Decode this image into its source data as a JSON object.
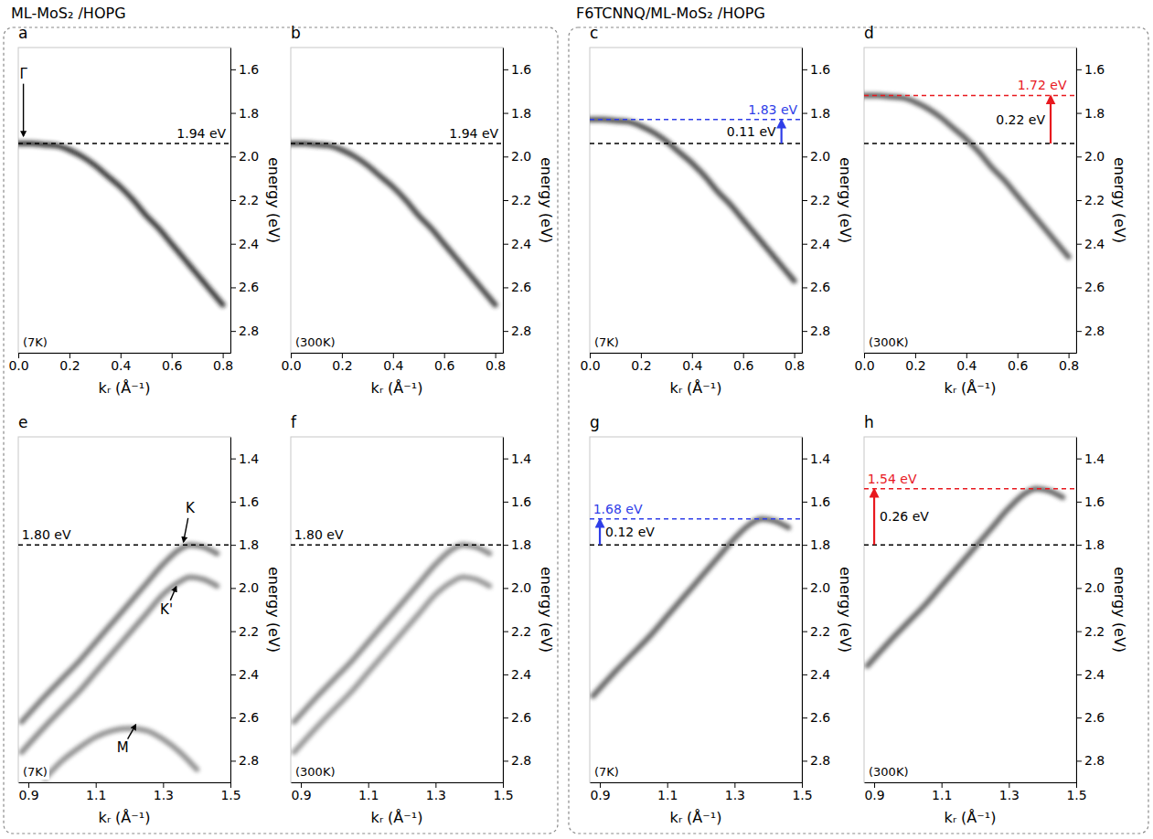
{
  "group_titles": [
    "ML-MoS₂ /HOPG",
    "F6TCNNQ/ML-MoS₂ /HOPG"
  ],
  "chart_data": [
    {
      "type": "line",
      "title": "a",
      "note": "(7K)",
      "x_label": "kᵣ (Å⁻¹)",
      "y_label": "energy (eV)",
      "xlim": [
        0,
        0.83
      ],
      "xticks": [
        {
          "value": 0,
          "label": "0.0"
        },
        0.2,
        0.4,
        0.6,
        0.8
      ],
      "ylim": [
        2.9,
        1.5
      ],
      "yticks": [
        1.6,
        1.8,
        {
          "value": 2,
          "label": "2.0"
        },
        2.2,
        2.4,
        2.6,
        2.8
      ],
      "series": [
        {
          "color": "#1a1a1a",
          "x": [
            0,
            0.05,
            0.1,
            0.15,
            0.2,
            0.25,
            0.3,
            0.35,
            0.4,
            0.45,
            0.5,
            0.55,
            0.6,
            0.65,
            0.7,
            0.75,
            0.8
          ],
          "values": [
            1.94,
            1.94,
            1.945,
            1.95,
            1.97,
            2.0,
            2.04,
            2.09,
            2.14,
            2.2,
            2.27,
            2.33,
            2.4,
            2.47,
            2.54,
            2.61,
            2.68
          ]
        }
      ],
      "reference_lines": [
        {
          "value": 1.94,
          "label": "1.94 eV",
          "x": 0.62,
          "color": "#000000"
        }
      ],
      "annotations": [
        {
          "text": "Γ",
          "xy": [
            0.02,
            1.91
          ],
          "xytext": [
            0.02,
            1.62
          ]
        }
      ]
    },
    {
      "type": "line",
      "title": "b",
      "note": "(300K)",
      "x_label": "kᵣ (Å⁻¹)",
      "y_label": "energy (eV)",
      "xlim": [
        0,
        0.83
      ],
      "xticks": [
        {
          "value": 0,
          "label": "0.0"
        },
        0.2,
        0.4,
        0.6,
        0.8
      ],
      "ylim": [
        2.9,
        1.5
      ],
      "yticks": [
        1.6,
        1.8,
        {
          "value": 2,
          "label": "2.0"
        },
        2.2,
        2.4,
        2.6,
        2.8
      ],
      "series": [
        {
          "color": "#2a2a2a",
          "x": [
            0,
            0.05,
            0.1,
            0.15,
            0.2,
            0.25,
            0.3,
            0.35,
            0.4,
            0.45,
            0.5,
            0.55,
            0.6,
            0.65,
            0.7,
            0.75,
            0.8
          ],
          "values": [
            1.94,
            1.94,
            1.945,
            1.95,
            1.97,
            2.0,
            2.04,
            2.09,
            2.14,
            2.2,
            2.27,
            2.33,
            2.4,
            2.47,
            2.54,
            2.61,
            2.68
          ]
        }
      ],
      "reference_lines": [
        {
          "value": 1.94,
          "label": "1.94 eV",
          "x": 0.62,
          "color": "#000000"
        }
      ]
    },
    {
      "type": "line",
      "title": "c",
      "note": "(7K)",
      "x_label": "kᵣ (Å⁻¹)",
      "y_label": "energy (eV)",
      "xlim": [
        0,
        0.83
      ],
      "xticks": [
        {
          "value": 0,
          "label": "0.0"
        },
        0.2,
        0.4,
        0.6,
        0.8
      ],
      "ylim": [
        2.9,
        1.5
      ],
      "yticks": [
        1.6,
        1.8,
        {
          "value": 2,
          "label": "2.0"
        },
        2.2,
        2.4,
        2.6,
        2.8
      ],
      "series": [
        {
          "color": "#333333",
          "x": [
            0,
            0.05,
            0.1,
            0.15,
            0.2,
            0.25,
            0.3,
            0.35,
            0.4,
            0.45,
            0.5,
            0.55,
            0.6,
            0.65,
            0.7,
            0.75,
            0.8
          ],
          "values": [
            1.83,
            1.83,
            1.835,
            1.84,
            1.86,
            1.89,
            1.93,
            1.98,
            2.03,
            2.09,
            2.16,
            2.22,
            2.29,
            2.36,
            2.43,
            2.5,
            2.57
          ]
        }
      ],
      "reference_lines": [
        {
          "value": 1.83,
          "label": "1.83 eV",
          "x": 0.62,
          "color": "#2f3ee8"
        },
        {
          "value": 1.94,
          "color": "#000000"
        }
      ],
      "shift": {
        "from": 1.94,
        "to": 1.83,
        "x": 0.75,
        "label": "0.11 eV",
        "color": "#2f3ee8"
      }
    },
    {
      "type": "line",
      "title": "d",
      "note": "(300K)",
      "x_label": "kᵣ (Å⁻¹)",
      "y_label": "energy (eV)",
      "xlim": [
        0,
        0.83
      ],
      "xticks": [
        {
          "value": 0,
          "label": "0.0"
        },
        0.2,
        0.4,
        0.6,
        0.8
      ],
      "ylim": [
        2.9,
        1.5
      ],
      "yticks": [
        1.6,
        1.8,
        {
          "value": 2,
          "label": "2.0"
        },
        2.2,
        2.4,
        2.6,
        2.8
      ],
      "series": [
        {
          "color": "#444444",
          "x": [
            0,
            0.05,
            0.1,
            0.15,
            0.2,
            0.25,
            0.3,
            0.35,
            0.4,
            0.45,
            0.5,
            0.55,
            0.6,
            0.65,
            0.7,
            0.75,
            0.8
          ],
          "values": [
            1.72,
            1.72,
            1.725,
            1.73,
            1.75,
            1.78,
            1.82,
            1.87,
            1.92,
            1.98,
            2.05,
            2.11,
            2.18,
            2.25,
            2.32,
            2.39,
            2.46
          ]
        }
      ],
      "reference_lines": [
        {
          "value": 1.72,
          "label": "1.72 eV",
          "x": 0.6,
          "color": "#e8191f"
        },
        {
          "value": 1.94,
          "color": "#000000"
        }
      ],
      "shift": {
        "from": 1.94,
        "to": 1.72,
        "x": 0.73,
        "label": "0.22 eV",
        "color": "#e8191f"
      }
    },
    {
      "type": "line",
      "title": "e",
      "note": "(7K)",
      "x_label": "kᵣ (Å⁻¹)",
      "y_label": "energy (eV)",
      "xlim": [
        0.87,
        1.5
      ],
      "xticks": [
        0.9,
        1.1,
        1.3,
        1.5
      ],
      "ylim": [
        2.9,
        1.3
      ],
      "yticks": [
        1.4,
        1.6,
        1.8,
        {
          "value": 2,
          "label": "2.0"
        },
        2.2,
        2.4,
        2.6,
        2.8
      ],
      "series": [
        {
          "color": "#666666",
          "x": [
            0.88,
            0.95,
            1.0,
            1.05,
            1.1,
            1.15,
            1.2,
            1.25,
            1.3,
            1.35,
            1.38,
            1.42,
            1.46
          ],
          "values": [
            2.62,
            2.5,
            2.42,
            2.34,
            2.25,
            2.16,
            2.07,
            1.98,
            1.89,
            1.82,
            1.8,
            1.81,
            1.84
          ]
        },
        {
          "color": "#777777",
          "x": [
            0.88,
            0.95,
            1.0,
            1.05,
            1.1,
            1.15,
            1.2,
            1.25,
            1.3,
            1.35,
            1.38,
            1.42,
            1.46
          ],
          "values": [
            2.76,
            2.64,
            2.56,
            2.48,
            2.39,
            2.3,
            2.21,
            2.12,
            2.03,
            1.97,
            1.95,
            1.96,
            1.99
          ]
        },
        {
          "color": "#808080",
          "x": [
            0.95,
            1.0,
            1.05,
            1.1,
            1.15,
            1.2,
            1.25,
            1.3,
            1.35,
            1.4
          ],
          "values": [
            2.88,
            2.8,
            2.74,
            2.69,
            2.66,
            2.65,
            2.66,
            2.7,
            2.76,
            2.84
          ]
        }
      ],
      "reference_lines": [
        {
          "value": 1.8,
          "label": "1.80 eV",
          "x": 0.88,
          "color": "#000000"
        }
      ],
      "annotations": [
        {
          "text": "K",
          "xy": [
            1.36,
            1.79
          ],
          "xytext": [
            1.38,
            1.63
          ]
        },
        {
          "text": "K'",
          "xy": [
            1.34,
            1.99
          ],
          "xytext": [
            1.31,
            2.1
          ]
        },
        {
          "text": "M",
          "xy": [
            1.22,
            2.63
          ],
          "xytext": [
            1.18,
            2.74
          ]
        }
      ]
    },
    {
      "type": "line",
      "title": "f",
      "note": "(300K)",
      "x_label": "kᵣ (Å⁻¹)",
      "y_label": "energy (eV)",
      "xlim": [
        0.87,
        1.5
      ],
      "xticks": [
        0.9,
        1.1,
        1.3,
        1.5
      ],
      "ylim": [
        2.9,
        1.3
      ],
      "yticks": [
        1.4,
        1.6,
        1.8,
        {
          "value": 2,
          "label": "2.0"
        },
        2.2,
        2.4,
        2.6,
        2.8
      ],
      "series": [
        {
          "color": "#777777",
          "x": [
            0.88,
            0.95,
            1.0,
            1.05,
            1.1,
            1.15,
            1.2,
            1.25,
            1.3,
            1.35,
            1.38,
            1.42,
            1.46
          ],
          "values": [
            2.62,
            2.5,
            2.42,
            2.34,
            2.25,
            2.16,
            2.07,
            1.98,
            1.89,
            1.82,
            1.8,
            1.81,
            1.84
          ]
        },
        {
          "color": "#888888",
          "x": [
            0.88,
            0.95,
            1.0,
            1.05,
            1.1,
            1.15,
            1.2,
            1.25,
            1.3,
            1.35,
            1.38,
            1.42,
            1.46
          ],
          "values": [
            2.76,
            2.64,
            2.56,
            2.48,
            2.39,
            2.3,
            2.21,
            2.12,
            2.03,
            1.97,
            1.95,
            1.96,
            1.99
          ]
        }
      ],
      "reference_lines": [
        {
          "value": 1.8,
          "label": "1.80 eV",
          "x": 0.88,
          "color": "#000000"
        }
      ]
    },
    {
      "type": "line",
      "title": "g",
      "note": "(7K)",
      "x_label": "kᵣ (Å⁻¹)",
      "y_label": "energy (eV)",
      "xlim": [
        0.87,
        1.5
      ],
      "xticks": [
        0.9,
        1.1,
        1.3,
        1.5
      ],
      "ylim": [
        2.9,
        1.3
      ],
      "yticks": [
        1.4,
        1.6,
        1.8,
        {
          "value": 2,
          "label": "2.0"
        },
        2.2,
        2.4,
        2.6,
        2.8
      ],
      "series": [
        {
          "color": "#4d4d4d",
          "x": [
            0.88,
            0.95,
            1.0,
            1.05,
            1.1,
            1.15,
            1.2,
            1.25,
            1.3,
            1.35,
            1.38,
            1.42,
            1.46
          ],
          "values": [
            2.5,
            2.38,
            2.3,
            2.22,
            2.13,
            2.04,
            1.95,
            1.86,
            1.77,
            1.7,
            1.68,
            1.69,
            1.72
          ]
        }
      ],
      "reference_lines": [
        {
          "value": 1.68,
          "label": "1.68 eV",
          "x": 0.88,
          "color": "#2f3ee8"
        },
        {
          "value": 1.8,
          "color": "#000000"
        }
      ],
      "shift": {
        "from": 1.8,
        "to": 1.68,
        "x": 0.9,
        "label": "0.12 eV",
        "color": "#2f3ee8"
      }
    },
    {
      "type": "line",
      "title": "h",
      "note": "(300K)",
      "x_label": "kᵣ (Å⁻¹)",
      "y_label": "energy (eV)",
      "xlim": [
        0.87,
        1.5
      ],
      "xticks": [
        0.9,
        1.1,
        1.3,
        1.5
      ],
      "ylim": [
        2.9,
        1.3
      ],
      "yticks": [
        1.4,
        1.6,
        1.8,
        {
          "value": 2,
          "label": "2.0"
        },
        2.2,
        2.4,
        2.6,
        2.8
      ],
      "series": [
        {
          "color": "#4d4d4d",
          "x": [
            0.88,
            0.95,
            1.0,
            1.05,
            1.1,
            1.15,
            1.2,
            1.25,
            1.3,
            1.35,
            1.38,
            1.42,
            1.46
          ],
          "values": [
            2.36,
            2.24,
            2.16,
            2.08,
            1.99,
            1.9,
            1.81,
            1.72,
            1.63,
            1.56,
            1.54,
            1.55,
            1.58
          ]
        }
      ],
      "reference_lines": [
        {
          "value": 1.54,
          "label": "1.54 eV",
          "x": 0.88,
          "color": "#e8191f"
        },
        {
          "value": 1.8,
          "color": "#000000"
        }
      ],
      "shift": {
        "from": 1.8,
        "to": 1.54,
        "x": 0.9,
        "label": "0.26 eV",
        "color": "#e8191f"
      }
    }
  ]
}
